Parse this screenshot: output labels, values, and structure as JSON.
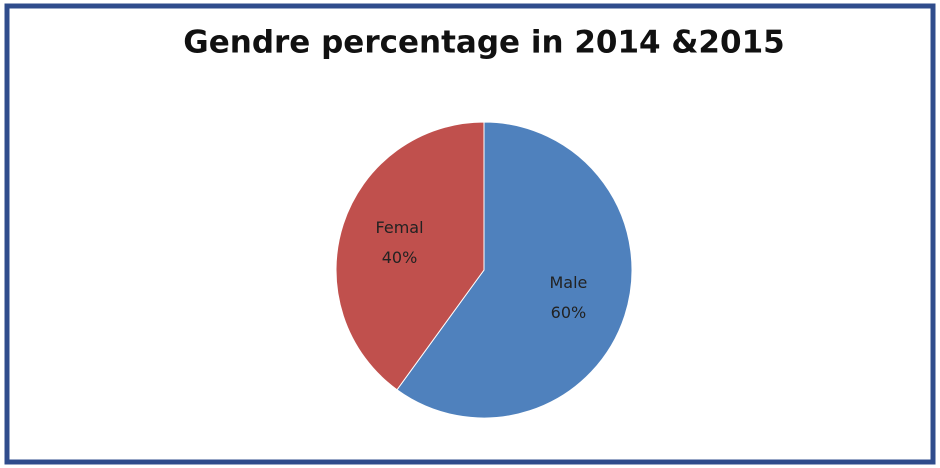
{
  "chart_data": {
    "type": "pie",
    "title": "Gendre percentage in 2014 &2015",
    "categories": [
      "Male",
      "Femal"
    ],
    "values": [
      60,
      40
    ],
    "value_labels": [
      "60%",
      "40%"
    ],
    "colors": [
      "#4f81bd",
      "#c0504d"
    ]
  }
}
